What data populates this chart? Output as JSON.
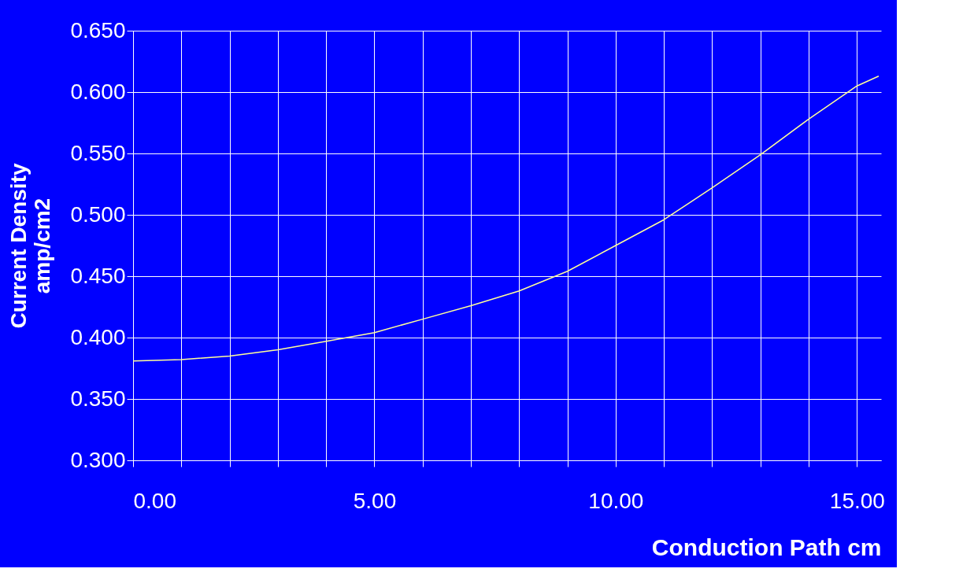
{
  "chart_data": {
    "type": "line",
    "xlabel": "Conduction Path cm",
    "ylabel": "Current Density\namp/cm2",
    "x": [
      0,
      1,
      2,
      3,
      4,
      5,
      6,
      7,
      8,
      9,
      10,
      11,
      12,
      13,
      14,
      15,
      15.45
    ],
    "series": [
      {
        "color": "#ffff99",
        "values": [
          0.381,
          0.382,
          0.385,
          0.39,
          0.397,
          0.404,
          0.415,
          0.426,
          0.438,
          0.454,
          0.475,
          0.496,
          0.522,
          0.549,
          0.578,
          0.605,
          0.613
        ]
      }
    ],
    "xlim": [
      0,
      15.5
    ],
    "xticks": [
      {
        "value": 0,
        "label": "0.00"
      },
      {
        "value": 1,
        "label": null
      },
      {
        "value": 2,
        "label": null
      },
      {
        "value": 3,
        "label": null
      },
      {
        "value": 4,
        "label": null
      },
      {
        "value": 5,
        "label": "5.00"
      },
      {
        "value": 6,
        "label": null
      },
      {
        "value": 7,
        "label": null
      },
      {
        "value": 8,
        "label": null
      },
      {
        "value": 9,
        "label": null
      },
      {
        "value": 10,
        "label": "10.00"
      },
      {
        "value": 11,
        "label": null
      },
      {
        "value": 12,
        "label": null
      },
      {
        "value": 13,
        "label": null
      },
      {
        "value": 14,
        "label": null
      },
      {
        "value": 15,
        "label": "15.00"
      }
    ],
    "ylim": [
      0.3,
      0.65
    ],
    "yticks": [
      {
        "value": 0.3,
        "label": "0.300"
      },
      {
        "value": 0.35,
        "label": "0.350"
      },
      {
        "value": 0.4,
        "label": "0.400"
      },
      {
        "value": 0.45,
        "label": "0.450"
      },
      {
        "value": 0.5,
        "label": "0.500"
      },
      {
        "value": 0.55,
        "label": "0.550"
      },
      {
        "value": 0.6,
        "label": "0.600"
      },
      {
        "value": 0.65,
        "label": "0.650"
      }
    ],
    "grid": true,
    "marker": "none",
    "line_style": "solid",
    "legend": false
  }
}
